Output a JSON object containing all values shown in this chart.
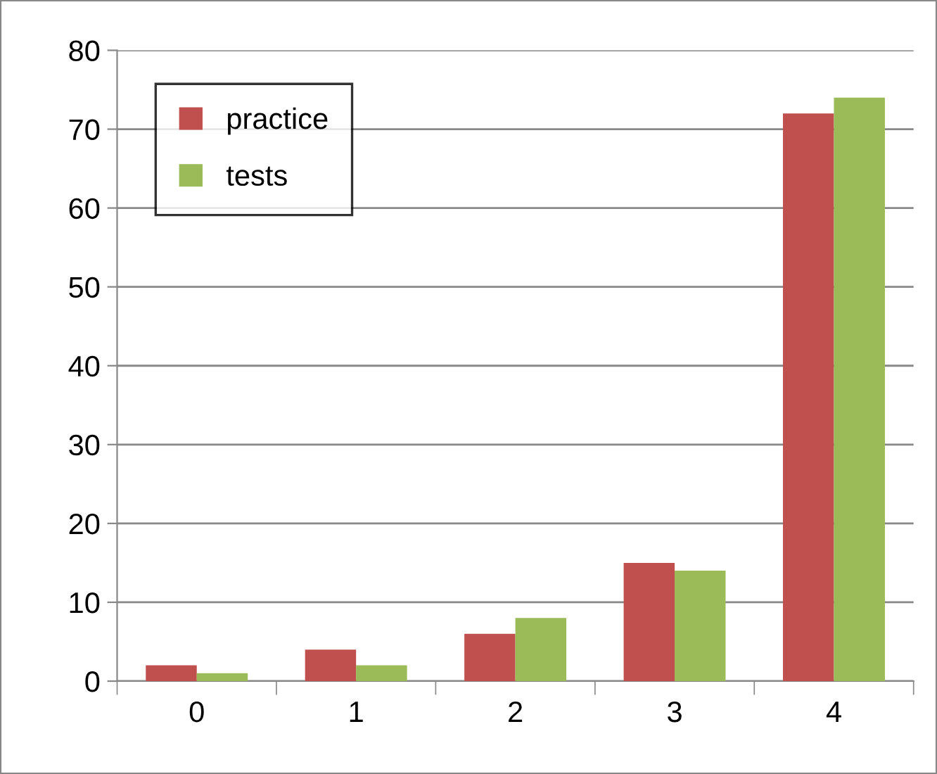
{
  "chart_data": {
    "type": "bar",
    "categories": [
      "0",
      "1",
      "2",
      "3",
      "4"
    ],
    "series": [
      {
        "name": "practice",
        "color": "#c0504d",
        "values": [
          2,
          4,
          6,
          15,
          72
        ]
      },
      {
        "name": "tests",
        "color": "#9bbb59",
        "values": [
          1,
          2,
          8,
          14,
          74
        ]
      }
    ],
    "ylim": [
      0,
      80
    ],
    "yticks": [
      0,
      10,
      20,
      30,
      40,
      50,
      60,
      70,
      80
    ],
    "grid": "y",
    "legend": "top left"
  }
}
